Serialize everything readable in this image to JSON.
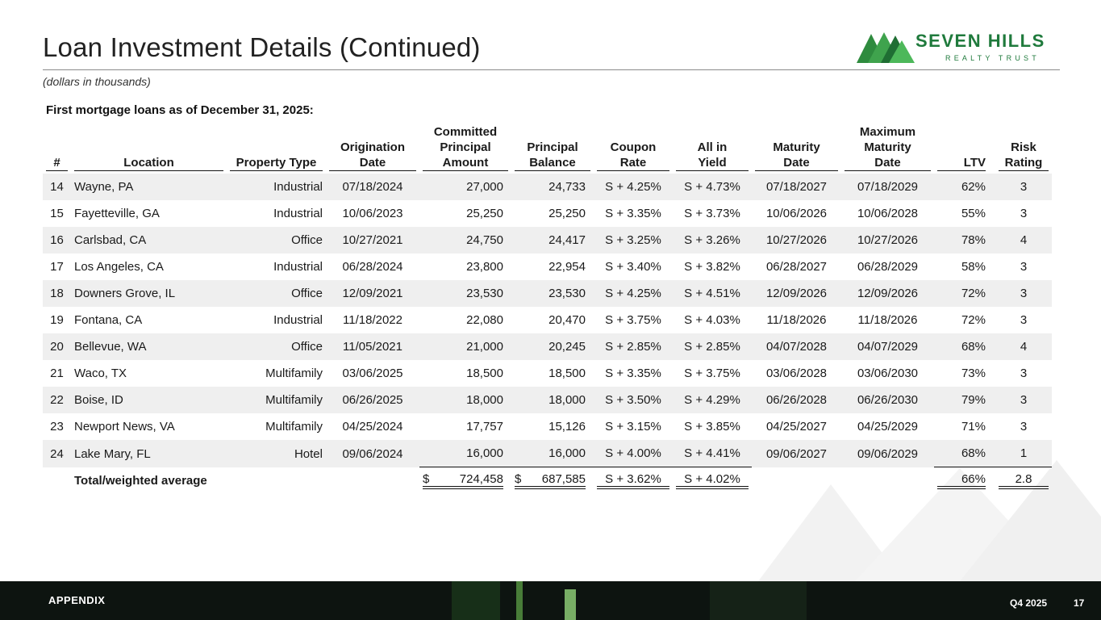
{
  "header": {
    "title": "Loan Investment Details (Continued)",
    "subtitle": "(dollars in thousands)",
    "logo_main": "SEVEN HILLS",
    "logo_sub": "REALTY TRUST"
  },
  "section_title": "First mortgage loans as of December 31, 2025:",
  "columns": {
    "num": "#",
    "location": "Location",
    "property_type": "Property Type",
    "origination": [
      "Origination",
      "Date"
    ],
    "committed": [
      "Committed",
      "Principal",
      "Amount"
    ],
    "balance": [
      "Principal",
      "Balance"
    ],
    "coupon": [
      "Coupon",
      "Rate"
    ],
    "yield": [
      "All in",
      "Yield"
    ],
    "maturity": [
      "Maturity",
      "Date"
    ],
    "max_maturity": [
      "Maximum",
      "Maturity",
      "Date"
    ],
    "ltv": "LTV",
    "risk": [
      "Risk",
      "Rating"
    ]
  },
  "rows": [
    {
      "num": "14",
      "location": "Wayne, PA",
      "type": "Industrial",
      "orig": "07/18/2024",
      "committed": "27,000",
      "balance": "24,733",
      "coupon": "S + 4.25%",
      "yield": "S + 4.73%",
      "maturity": "07/18/2027",
      "max": "07/18/2029",
      "ltv": "62%",
      "risk": "3"
    },
    {
      "num": "15",
      "location": "Fayetteville, GA",
      "type": "Industrial",
      "orig": "10/06/2023",
      "committed": "25,250",
      "balance": "25,250",
      "coupon": "S + 3.35%",
      "yield": "S + 3.73%",
      "maturity": "10/06/2026",
      "max": "10/06/2028",
      "ltv": "55%",
      "risk": "3"
    },
    {
      "num": "16",
      "location": "Carlsbad, CA",
      "type": "Office",
      "orig": "10/27/2021",
      "committed": "24,750",
      "balance": "24,417",
      "coupon": "S + 3.25%",
      "yield": "S + 3.26%",
      "maturity": "10/27/2026",
      "max": "10/27/2026",
      "ltv": "78%",
      "risk": "4"
    },
    {
      "num": "17",
      "location": "Los Angeles, CA",
      "type": "Industrial",
      "orig": "06/28/2024",
      "committed": "23,800",
      "balance": "22,954",
      "coupon": "S + 3.40%",
      "yield": "S + 3.82%",
      "maturity": "06/28/2027",
      "max": "06/28/2029",
      "ltv": "58%",
      "risk": "3"
    },
    {
      "num": "18",
      "location": "Downers Grove, IL",
      "type": "Office",
      "orig": "12/09/2021",
      "committed": "23,530",
      "balance": "23,530",
      "coupon": "S + 4.25%",
      "yield": "S + 4.51%",
      "maturity": "12/09/2026",
      "max": "12/09/2026",
      "ltv": "72%",
      "risk": "3"
    },
    {
      "num": "19",
      "location": "Fontana, CA",
      "type": "Industrial",
      "orig": "11/18/2022",
      "committed": "22,080",
      "balance": "20,470",
      "coupon": "S + 3.75%",
      "yield": "S + 4.03%",
      "maturity": "11/18/2026",
      "max": "11/18/2026",
      "ltv": "72%",
      "risk": "3"
    },
    {
      "num": "20",
      "location": "Bellevue, WA",
      "type": "Office",
      "orig": "11/05/2021",
      "committed": "21,000",
      "balance": "20,245",
      "coupon": "S + 2.85%",
      "yield": "S + 2.85%",
      "maturity": "04/07/2028",
      "max": "04/07/2029",
      "ltv": "68%",
      "risk": "4"
    },
    {
      "num": "21",
      "location": "Waco, TX",
      "type": "Multifamily",
      "orig": "03/06/2025",
      "committed": "18,500",
      "balance": "18,500",
      "coupon": "S + 3.35%",
      "yield": "S + 3.75%",
      "maturity": "03/06/2028",
      "max": "03/06/2030",
      "ltv": "73%",
      "risk": "3"
    },
    {
      "num": "22",
      "location": "Boise, ID",
      "type": "Multifamily",
      "orig": "06/26/2025",
      "committed": "18,000",
      "balance": "18,000",
      "coupon": "S + 3.50%",
      "yield": "S + 4.29%",
      "maturity": "06/26/2028",
      "max": "06/26/2030",
      "ltv": "79%",
      "risk": "3"
    },
    {
      "num": "23",
      "location": "Newport News, VA",
      "type": "Multifamily",
      "orig": "04/25/2024",
      "committed": "17,757",
      "balance": "15,126",
      "coupon": "S + 3.15%",
      "yield": "S + 3.85%",
      "maturity": "04/25/2027",
      "max": "04/25/2029",
      "ltv": "71%",
      "risk": "3"
    },
    {
      "num": "24",
      "location": "Lake Mary, FL",
      "type": "Hotel",
      "orig": "09/06/2024",
      "committed": "16,000",
      "balance": "16,000",
      "coupon": "S + 4.00%",
      "yield": "S + 4.41%",
      "maturity": "09/06/2027",
      "max": "09/06/2029",
      "ltv": "68%",
      "risk": "1"
    }
  ],
  "total": {
    "label": "Total/weighted average",
    "currency": "$",
    "committed": "724,458",
    "balance": "687,585",
    "coupon": "S + 3.62%",
    "yield": "S + 4.02%",
    "ltv": "66%",
    "risk": "2.8"
  },
  "footer": {
    "section": "APPENDIX",
    "period": "Q4 2025",
    "page": "17"
  },
  "colors": {
    "brand_green": "#1f7a3c",
    "row_shade": "#efefef",
    "footer_bg": "#0d1410"
  }
}
